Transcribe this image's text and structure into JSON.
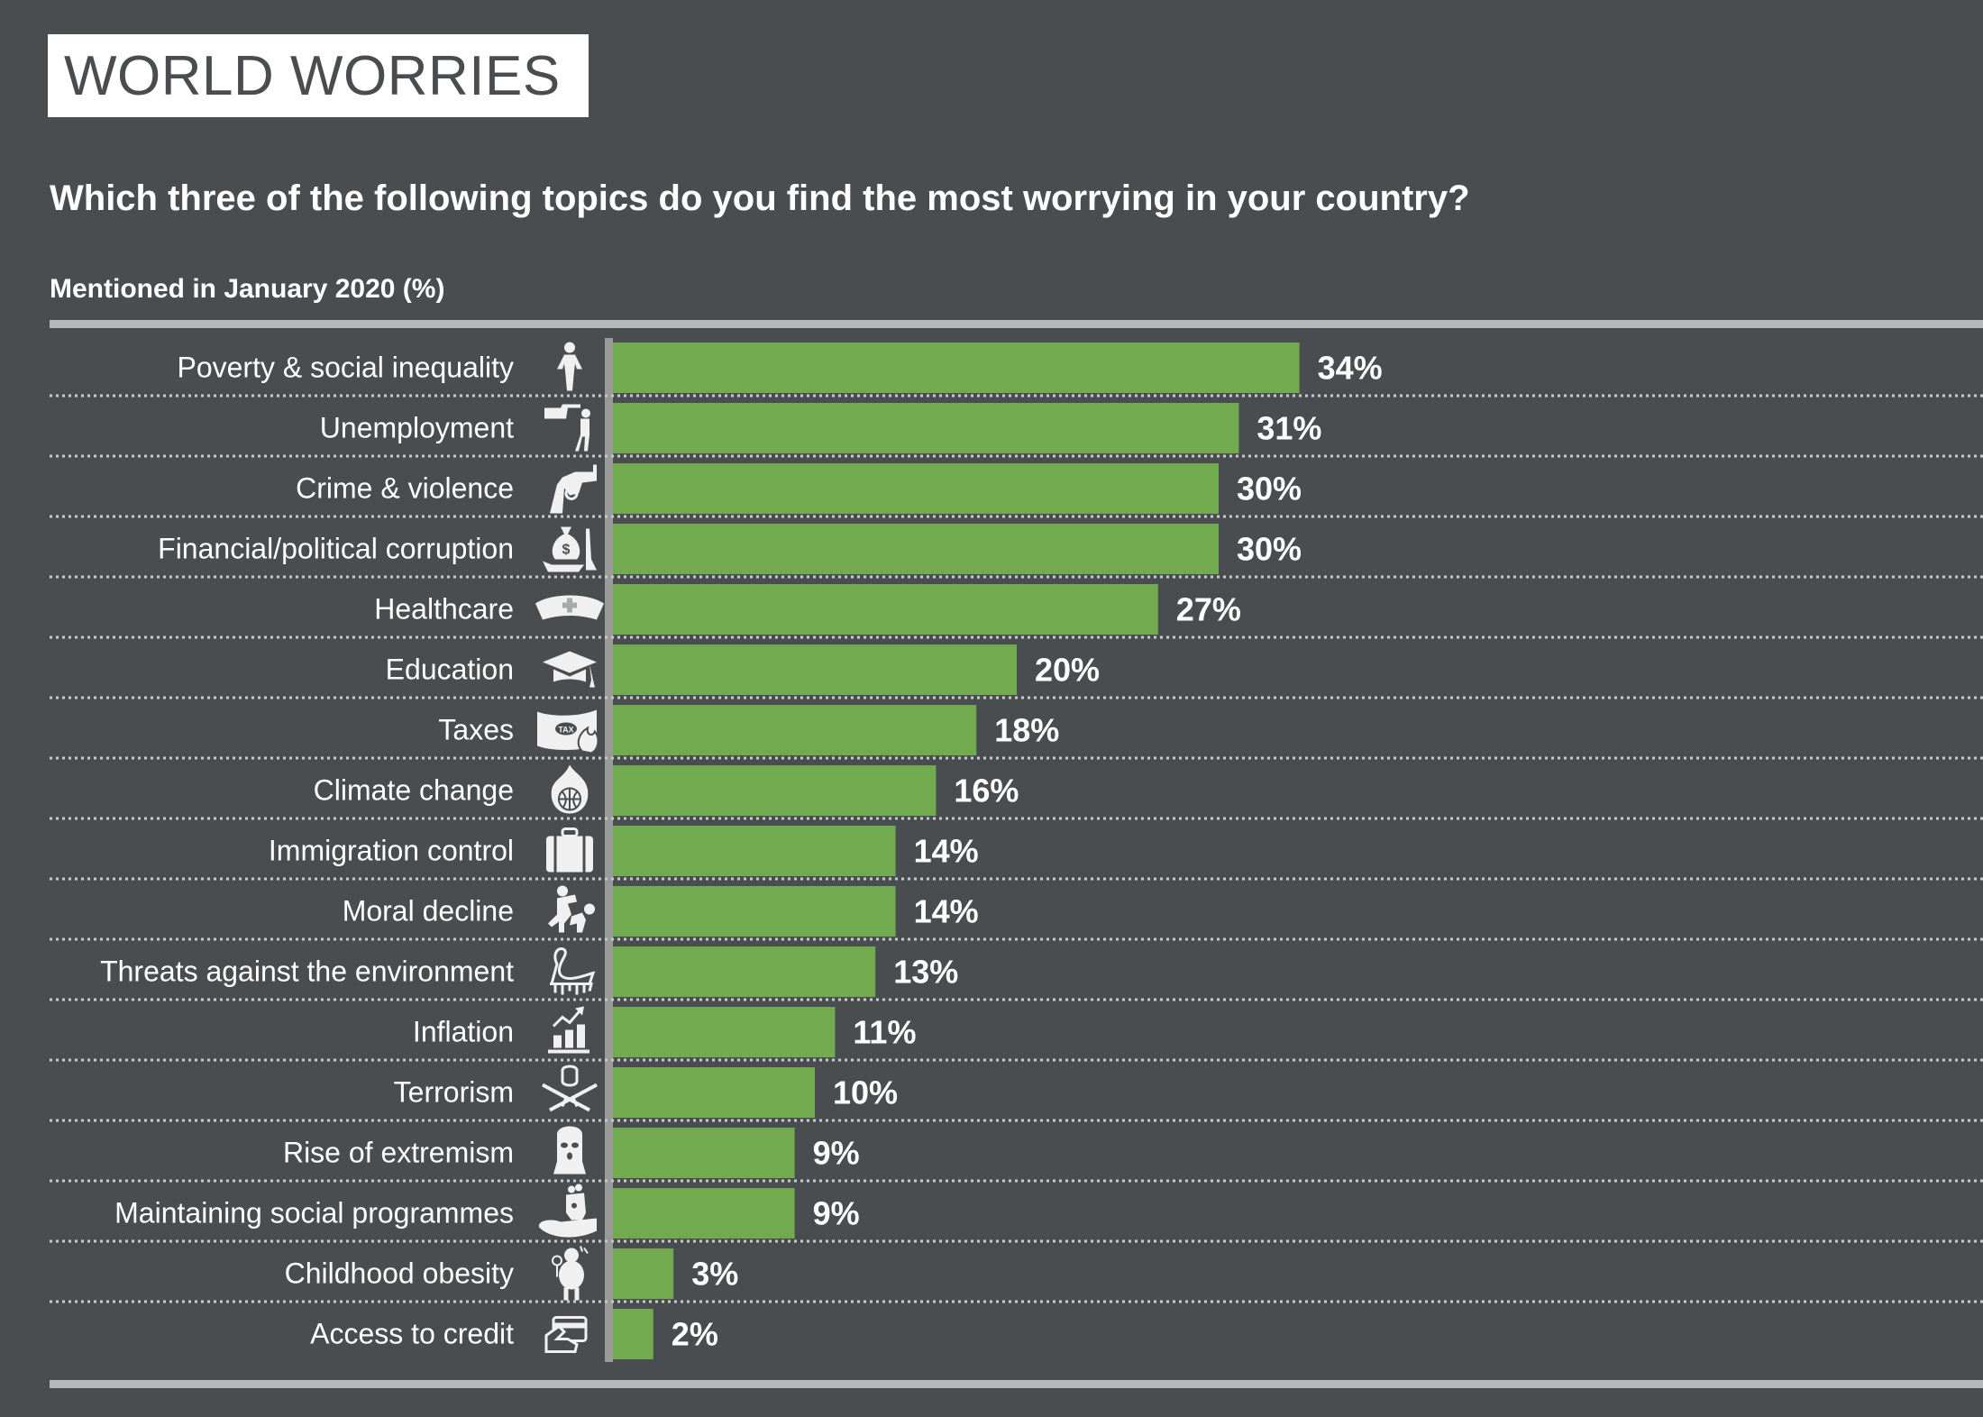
{
  "header": {
    "title": "WORLD WORRIES",
    "question": "Which three of the following topics do you find the most worrying in your country?",
    "subtitle": "Mentioned in January 2020 (%)"
  },
  "colors": {
    "background": "#4a4d4f",
    "bar": "#72aa4f",
    "axis": "#999b98",
    "rule": "#b5b9ba",
    "divider": "#c9cbcb",
    "icon": "#f0f0f0",
    "title_box": "#ffffff",
    "text": "#ffffff"
  },
  "chart_data": {
    "type": "bar",
    "orientation": "horizontal",
    "title": "Which three of the following topics do you find the most worrying in your country?",
    "subtitle": "Mentioned in January 2020 (%)",
    "xlabel": "",
    "ylabel": "",
    "grid": false,
    "value_suffix": "%",
    "categories": [
      "Poverty & social inequality",
      "Unemployment",
      "Crime & violence",
      "Financial/political corruption",
      "Healthcare",
      "Education",
      "Taxes",
      "Climate change",
      "Immigration control",
      "Moral decline",
      "Threats against the environment",
      "Inflation",
      "Terrorism",
      "Rise of extremism",
      "Maintaining social programmes",
      "Childhood obesity",
      "Access to credit"
    ],
    "icons": [
      "empty-pockets-person-icon",
      "fired-worker-icon",
      "revolver-icon",
      "money-bag-bribe-icon",
      "nurse-cap-icon",
      "graduation-cap-icon",
      "burning-tax-banknote-icon",
      "burning-globe-icon",
      "suitcase-icon",
      "fighting-people-icon",
      "oil-covered-swan-icon",
      "rising-bar-chart-icon",
      "terrorist-crossed-rifles-icon",
      "balaclava-mask-icon",
      "family-in-hand-icon",
      "obese-child-icon",
      "hand-credit-card-icon"
    ],
    "values": [
      34,
      31,
      30,
      30,
      27,
      20,
      18,
      16,
      14,
      14,
      13,
      11,
      10,
      9,
      9,
      3,
      2
    ],
    "value_labels": [
      "34%",
      "31%",
      "30%",
      "30%",
      "27%",
      "20%",
      "18%",
      "16%",
      "14%",
      "14%",
      "13%",
      "11%",
      "10%",
      "9%",
      "9%",
      "3%",
      "2%"
    ],
    "xlim": [
      0,
      68
    ]
  }
}
